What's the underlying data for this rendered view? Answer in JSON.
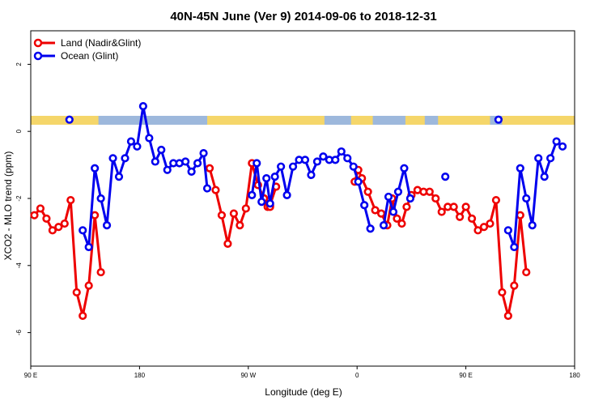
{
  "colors": {
    "land": "#ee0000",
    "ocean": "#0000ee",
    "map_land": "#f5d66a",
    "map_ocean": "#9db8dc"
  },
  "chart_data": {
    "type": "line",
    "title": "40N-45N June (Ver 9)   2014-09-06 to 2018-12-31",
    "xlabel": "Longitude (deg E)",
    "ylabel": "XCO2 - MLO trend (ppm)",
    "xlim": [
      90,
      540
    ],
    "ylim": [
      -7,
      3
    ],
    "x_ticks": [
      {
        "value": 90,
        "label": "90 E"
      },
      {
        "value": 180,
        "label": "180"
      },
      {
        "value": 270,
        "label": "90 W"
      },
      {
        "value": 360,
        "label": "0"
      },
      {
        "value": 450,
        "label": "90 E"
      },
      {
        "value": 540,
        "label": "180"
      }
    ],
    "y_ticks": [
      {
        "value": 2,
        "label": "2"
      },
      {
        "value": 0,
        "label": "0"
      },
      {
        "value": -2,
        "label": "-2"
      },
      {
        "value": -4,
        "label": "-4"
      },
      {
        "value": -6,
        "label": "-6"
      }
    ],
    "legend_position": "top-left",
    "series": [
      {
        "name": "Land (Nadir&Glint)",
        "color_key": "land",
        "segments": [
          [
            [
              93,
              -2.5
            ],
            [
              98,
              -2.3
            ],
            [
              103,
              -2.6
            ],
            [
              108,
              -2.95
            ],
            [
              113,
              -2.85
            ],
            [
              118,
              -2.75
            ],
            [
              123,
              -2.05
            ],
            [
              128,
              -4.8
            ],
            [
              133,
              -5.5
            ],
            [
              138,
              -4.6
            ],
            [
              143,
              -2.5
            ],
            [
              148,
              -4.2
            ]
          ],
          [
            [
              238,
              -1.1
            ],
            [
              243,
              -1.75
            ],
            [
              248,
              -2.5
            ],
            [
              253,
              -3.35
            ],
            [
              258,
              -2.45
            ],
            [
              263,
              -2.8
            ],
            [
              268,
              -2.3
            ],
            [
              273,
              -0.95
            ],
            [
              278,
              -1.6
            ],
            [
              283,
              -2.0
            ],
            [
              288,
              -2.2
            ],
            [
              293,
              -1.65
            ]
          ],
          [
            [
              283,
              -2.0
            ],
            [
              286,
              -2.25
            ],
            [
              288,
              -2.25
            ]
          ],
          [
            [
              358,
              -1.5
            ],
            [
              361,
              -1.15
            ],
            [
              364,
              -1.4
            ],
            [
              369,
              -1.8
            ],
            [
              375,
              -2.35
            ],
            [
              380,
              -2.45
            ],
            [
              385,
              -2.8
            ],
            [
              389,
              -2.0
            ],
            [
              393,
              -2.6
            ],
            [
              397,
              -2.75
            ],
            [
              401,
              -2.25
            ],
            [
              405,
              -1.9
            ],
            [
              410,
              -1.75
            ],
            [
              415,
              -1.8
            ],
            [
              420,
              -1.8
            ],
            [
              425,
              -2.0
            ],
            [
              430,
              -2.4
            ],
            [
              435,
              -2.25
            ],
            [
              440,
              -2.25
            ],
            [
              445,
              -2.55
            ],
            [
              450,
              -2.25
            ],
            [
              455,
              -2.6
            ],
            [
              460,
              -2.95
            ],
            [
              465,
              -2.85
            ],
            [
              470,
              -2.75
            ],
            [
              475,
              -2.05
            ],
            [
              480,
              -4.8
            ],
            [
              485,
              -5.5
            ],
            [
              490,
              -4.6
            ],
            [
              495,
              -2.5
            ],
            [
              500,
              -4.2
            ]
          ]
        ]
      },
      {
        "name": "Ocean (Glint)",
        "color_key": "ocean",
        "segments": [
          [
            [
              133,
              -2.95
            ],
            [
              138,
              -3.45
            ],
            [
              143,
              -1.1
            ],
            [
              148,
              -2.0
            ],
            [
              153,
              -2.8
            ],
            [
              158,
              -0.8
            ],
            [
              163,
              -1.35
            ],
            [
              168,
              -0.8
            ],
            [
              173,
              -0.3
            ],
            [
              178,
              -0.45
            ],
            [
              183,
              0.75
            ],
            [
              188,
              -0.2
            ],
            [
              193,
              -0.9
            ],
            [
              198,
              -0.55
            ],
            [
              203,
              -1.15
            ],
            [
              208,
              -0.95
            ],
            [
              213,
              -0.95
            ],
            [
              218,
              -0.9
            ],
            [
              223,
              -1.2
            ],
            [
              228,
              -0.95
            ],
            [
              233,
              -0.65
            ],
            [
              236,
              -1.7
            ]
          ],
          [
            [
              273,
              -1.9
            ],
            [
              277,
              -0.95
            ],
            [
              281,
              -2.1
            ],
            [
              285,
              -1.4
            ],
            [
              288,
              -2.15
            ],
            [
              292,
              -1.35
            ],
            [
              297,
              -1.05
            ],
            [
              302,
              -1.9
            ],
            [
              307,
              -1.05
            ],
            [
              312,
              -0.85
            ],
            [
              317,
              -0.85
            ],
            [
              322,
              -1.3
            ],
            [
              327,
              -0.9
            ],
            [
              332,
              -0.75
            ],
            [
              337,
              -0.85
            ],
            [
              342,
              -0.85
            ],
            [
              347,
              -0.6
            ],
            [
              352,
              -0.8
            ],
            [
              357,
              -1.05
            ],
            [
              361,
              -1.5
            ],
            [
              366,
              -2.2
            ],
            [
              371,
              -2.9
            ]
          ],
          [
            [
              382,
              -2.8
            ],
            [
              386,
              -1.95
            ],
            [
              390,
              -2.4
            ],
            [
              394,
              -1.8
            ],
            [
              399,
              -1.1
            ],
            [
              404,
              -2.0
            ]
          ],
          [
            [
              485,
              -2.95
            ],
            [
              490,
              -3.45
            ],
            [
              495,
              -1.1
            ],
            [
              500,
              -2.0
            ],
            [
              505,
              -2.8
            ],
            [
              510,
              -0.8
            ],
            [
              515,
              -1.35
            ],
            [
              520,
              -0.8
            ],
            [
              525,
              -0.3
            ],
            [
              530,
              -0.45
            ]
          ]
        ],
        "isolated_points": [
          [
            122,
            0.35
          ],
          [
            433,
            -1.35
          ],
          [
            477,
            0.35
          ]
        ]
      }
    ]
  }
}
